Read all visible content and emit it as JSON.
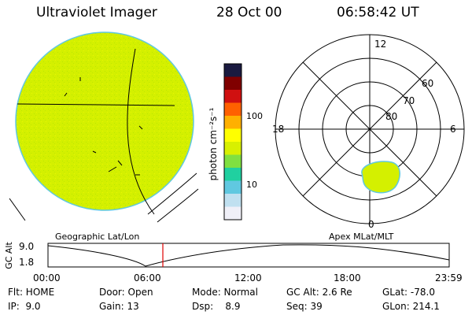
{
  "header": {
    "instrument": "Ultraviolet Imager",
    "date": "28 Oct 00",
    "time": "06:58:42 UT"
  },
  "colorbar": {
    "unit_label": "photon cm⁻²s⁻¹",
    "ticks": [
      "100",
      "10"
    ],
    "colors": [
      "#1a1a40",
      "#800000",
      "#d01010",
      "#ff6000",
      "#ffb000",
      "#ffff00",
      "#d8f000",
      "#80e040",
      "#20d0a0",
      "#60c8e0",
      "#c0e0f0",
      "#f0f0f8"
    ]
  },
  "geo_panel": {
    "caption": "Geographic Lat/Lon",
    "disk_color": "#d4f000"
  },
  "polar_panel": {
    "caption": "Apex MLat/MLT",
    "mlt_labels": {
      "top": "12",
      "left": "18",
      "right": "6",
      "bottom": "0"
    },
    "lat_labels": [
      "60",
      "70",
      "80"
    ],
    "oval_color": "#d4f000"
  },
  "timeline": {
    "ylabel": "GC Alt",
    "ymax": "9.0",
    "ymin": "1.8",
    "times": [
      "00:00",
      "06:00",
      "12:00",
      "18:00",
      "23:59"
    ],
    "marker_color": "#e00000"
  },
  "info": {
    "flt": "Flt: HOME",
    "ip": "IP:  9.0",
    "door": "Door: Open",
    "gain": "Gain: 13",
    "mode": "Mode: Normal",
    "dsp": "Dsp:    8.9",
    "gcalt": "GC Alt: 2.6 Re",
    "seq": "Seq: 39",
    "glat": "GLat: -78.0",
    "glon": "GLon: 214.1"
  }
}
